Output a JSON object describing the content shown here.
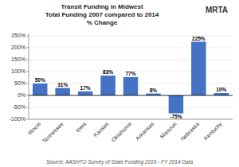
{
  "chart_data": {
    "type": "bar",
    "title": "Transit Funding in Midwest\nTotal Funding 2007 compared to 2014\n% Change",
    "categories": [
      "Illinois",
      "Tennessee",
      "Iowa",
      "Kansas",
      "Oklahoma",
      "Arkansas",
      "Missouri",
      "Nebraska",
      "Kentucky"
    ],
    "values": [
      50,
      31,
      17,
      83,
      77,
      8,
      -75,
      225,
      10
    ],
    "value_labels": [
      "50%",
      "31%",
      "17%",
      "83%",
      "77%",
      "8%",
      "-75%",
      "225%",
      "10%"
    ],
    "data_labels": true,
    "color": "#4472C4",
    "ylim": [
      -100,
      260
    ],
    "yticks": [
      {
        "value": -100,
        "label": "-100%"
      },
      {
        "value": -50,
        "label": "-50%"
      },
      {
        "value": 0,
        "label": "0%"
      },
      {
        "value": 50,
        "label": "50%"
      },
      {
        "value": 100,
        "label": "100%"
      },
      {
        "value": 150,
        "label": "150%"
      },
      {
        "value": 200,
        "label": "200%"
      },
      {
        "value": 250,
        "label": "250%"
      }
    ],
    "grid": true,
    "source": "Source:  AASHTO Survey of State Funding 2016 - FY 2014 Data",
    "annotations": [
      "MRTA"
    ]
  }
}
